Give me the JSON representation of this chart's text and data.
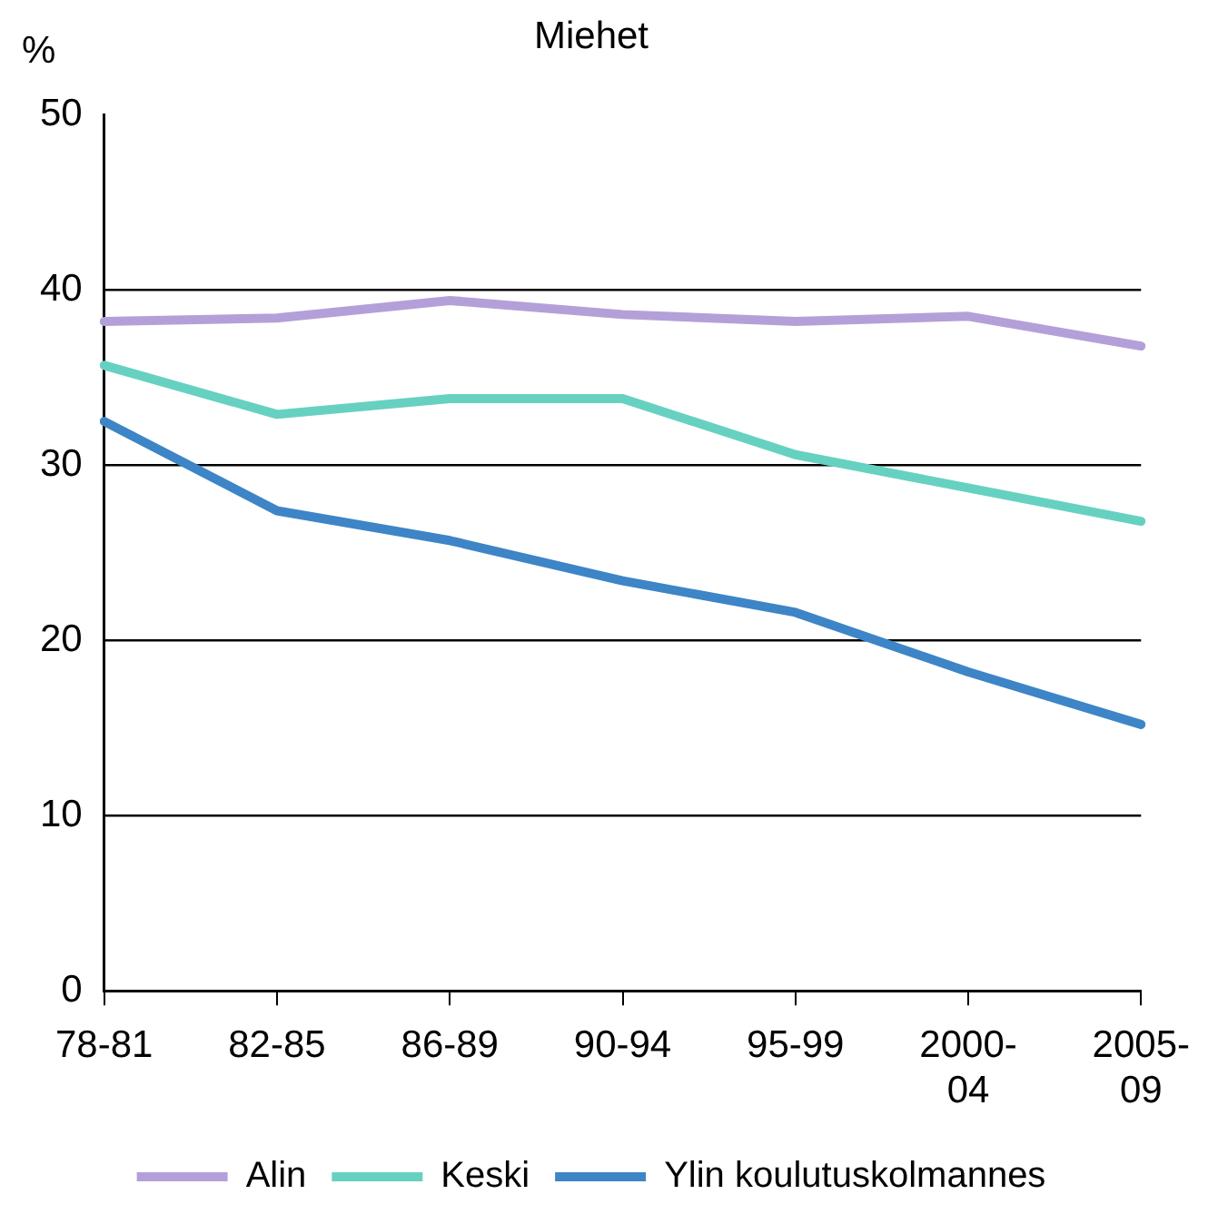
{
  "chart_data": {
    "type": "line",
    "title": "Miehet",
    "ylabel": "%",
    "categories": [
      "78-81",
      "82-85",
      "86-89",
      "90-94",
      "95-99",
      "2000-04",
      "2005-09"
    ],
    "series": [
      {
        "name": "Alin",
        "color": "#b4a0d8",
        "values": [
          38.2,
          38.4,
          39.4,
          38.6,
          38.2,
          38.5,
          36.8
        ]
      },
      {
        "name": "Keski",
        "color": "#66d1c1",
        "values": [
          35.7,
          32.9,
          33.8,
          33.8,
          30.6,
          28.7,
          26.8
        ]
      },
      {
        "name": "Ylin koulutuskolmannes",
        "color": "#3d85c6",
        "values": [
          32.5,
          27.4,
          25.7,
          23.4,
          21.6,
          18.2,
          15.2
        ]
      }
    ],
    "ylim": [
      0,
      50
    ],
    "yticks": [
      0,
      10,
      20,
      30,
      40,
      50
    ],
    "grid": "y",
    "legend": "bottom",
    "marker": "none",
    "line_style": "solid"
  }
}
